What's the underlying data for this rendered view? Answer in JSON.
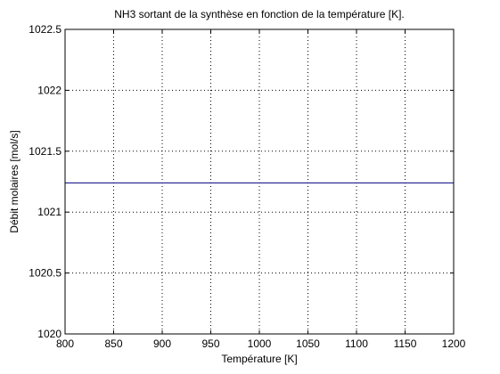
{
  "chart_data": {
    "type": "line",
    "title": "NH3 sortant de la synthèse en fonction de la température [K].",
    "xlabel": "Température [K]",
    "ylabel": "Débit molaires [mol/s]",
    "xlim": [
      800,
      1200
    ],
    "ylim": [
      1020,
      1022.5
    ],
    "xticks": [
      800,
      850,
      900,
      950,
      1000,
      1050,
      1100,
      1150,
      1200
    ],
    "yticks": [
      1020,
      1020.5,
      1021,
      1021.5,
      1022,
      1022.5
    ],
    "xtick_labels": [
      "800",
      "850",
      "900",
      "950",
      "1000",
      "1050",
      "1100",
      "1150",
      "1200"
    ],
    "ytick_labels": [
      "1020",
      "1020.5",
      "1021",
      "1021.5",
      "1022",
      "1022.5"
    ],
    "grid": true,
    "series": [
      {
        "x": [
          800,
          1200
        ],
        "y": [
          1021.24,
          1021.24
        ],
        "color": "#00007f"
      }
    ]
  }
}
